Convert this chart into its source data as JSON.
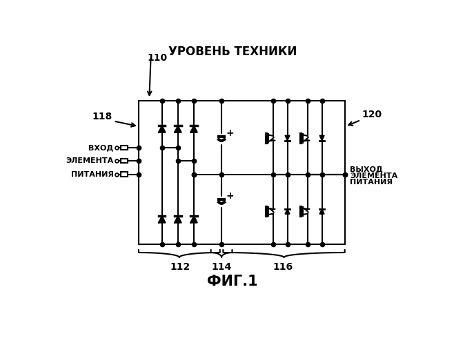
{
  "title": "УРОВЕНЬ ТЕХНИКИ",
  "fig_label": "ФИГ.1",
  "label_110": "110",
  "label_112": "112",
  "label_114": "114",
  "label_116": "116",
  "label_118": "118",
  "label_120": "120",
  "text_left_line1": "ВХОД",
  "text_left_line2": "ЭЛЕМЕНТА",
  "text_left_line3": "ПИТАНИЯ",
  "text_right_line1": "ВЫХОД",
  "text_right_line2": "ЭЛЕМЕНТА",
  "text_right_line3": "ПИТАНИЯ",
  "bg_color": "#ffffff",
  "line_color": "#000000",
  "lw": 1.5,
  "dot_size": 4.5
}
